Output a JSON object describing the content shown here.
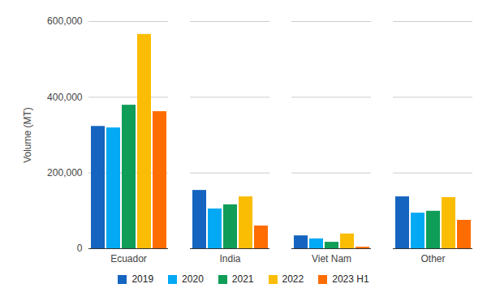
{
  "chart_data": {
    "type": "bar",
    "y_label": "Volume (MT)",
    "categories": [
      "Ecuador",
      "India",
      "Viet Nam",
      "Other"
    ],
    "series": [
      {
        "name": "2019",
        "color": "#1565c0",
        "values": [
          323000,
          154000,
          34000,
          137000
        ]
      },
      {
        "name": "2020",
        "color": "#03a9f4",
        "values": [
          319000,
          105000,
          26000,
          94000
        ]
      },
      {
        "name": "2021",
        "color": "#0f9d58",
        "values": [
          379000,
          116000,
          17000,
          99000
        ]
      },
      {
        "name": "2022",
        "color": "#fbbc04",
        "values": [
          566000,
          137000,
          39000,
          135000
        ]
      },
      {
        "name": "2023 H1",
        "color": "#ff6d01",
        "values": [
          362000,
          60000,
          4000,
          75000
        ]
      }
    ],
    "ylim": [
      0,
      600000
    ],
    "yticks": [
      0,
      {
        "value": 200000,
        "label": "200,000"
      },
      {
        "value": 400000,
        "label": "400,000"
      },
      {
        "value": 600000,
        "label": "600,000"
      }
    ],
    "grid": true,
    "legend": "bottom"
  }
}
